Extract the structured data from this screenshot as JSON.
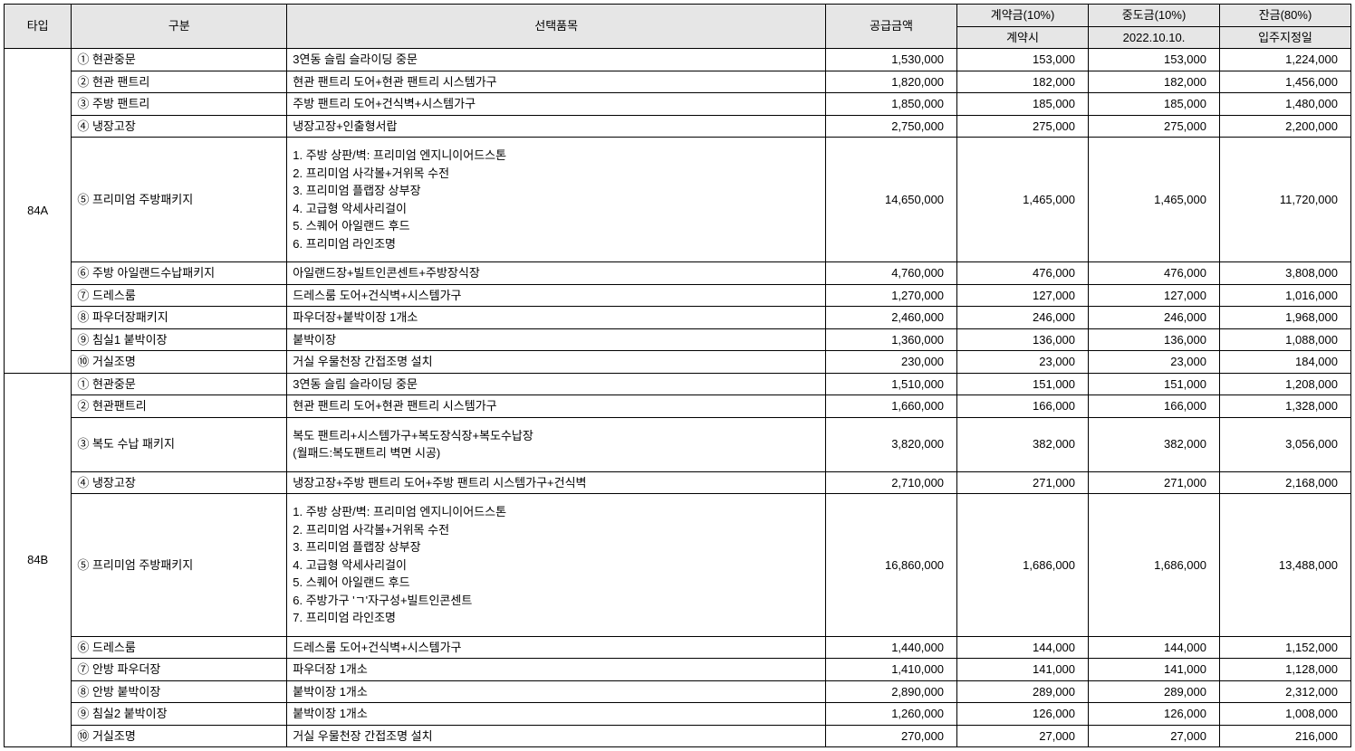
{
  "headers": {
    "type": "타입",
    "gubun": "구분",
    "item": "선택품목",
    "supply": "공급금액",
    "contract": "계약금(10%)",
    "mid": "중도금(10%)",
    "balance": "잔금(80%)",
    "contract_sub": "계약시",
    "mid_sub": "2022.10.10.",
    "balance_sub": "입주지정일"
  },
  "groups": [
    {
      "type": "84A",
      "rows": [
        {
          "gubun": "① 현관중문",
          "item": "3연동 슬림 슬라이딩 중문",
          "supply": "1,530,000",
          "c": "153,000",
          "m": "153,000",
          "b": "1,224,000"
        },
        {
          "gubun": "② 현관 팬트리",
          "item": "현관 팬트리 도어+현관 팬트리 시스템가구",
          "supply": "1,820,000",
          "c": "182,000",
          "m": "182,000",
          "b": "1,456,000"
        },
        {
          "gubun": "③ 주방 팬트리",
          "item": "주방 팬트리 도어+건식벽+시스템가구",
          "supply": "1,850,000",
          "c": "185,000",
          "m": "185,000",
          "b": "1,480,000"
        },
        {
          "gubun": "④ 냉장고장",
          "item": "냉장고장+인출형서랍",
          "supply": "2,750,000",
          "c": "275,000",
          "m": "275,000",
          "b": "2,200,000"
        },
        {
          "gubun": "⑤ 프리미엄 주방패키지",
          "item": "1. 주방 상판/벽: 프리미엄 엔지니이어드스톤\n2. 프리미엄 사각볼+거위목 수전\n3. 프리미엄 플랩장 상부장\n4. 고급형 악세사리걸이\n5. 스퀘어 아일랜드 후드\n6. 프리미엄 라인조명",
          "supply": "14,650,000",
          "c": "1,465,000",
          "m": "1,465,000",
          "b": "11,720,000",
          "multi": true
        },
        {
          "gubun": "⑥ 주방 아일랜드수납패키지",
          "item": "아일랜드장+빌트인콘센트+주방장식장",
          "supply": "4,760,000",
          "c": "476,000",
          "m": "476,000",
          "b": "3,808,000"
        },
        {
          "gubun": "⑦ 드레스룸",
          "item": "드레스룸 도어+건식벽+시스템가구",
          "supply": "1,270,000",
          "c": "127,000",
          "m": "127,000",
          "b": "1,016,000"
        },
        {
          "gubun": "⑧ 파우더장패키지",
          "item": "파우더장+붙박이장 1개소",
          "supply": "2,460,000",
          "c": "246,000",
          "m": "246,000",
          "b": "1,968,000"
        },
        {
          "gubun": "⑨ 침실1 붙박이장",
          "item": "붙박이장",
          "supply": "1,360,000",
          "c": "136,000",
          "m": "136,000",
          "b": "1,088,000"
        },
        {
          "gubun": "⑩ 거실조명",
          "item": "거실 우물천장 간접조명 설치",
          "supply": "230,000",
          "c": "23,000",
          "m": "23,000",
          "b": "184,000"
        }
      ]
    },
    {
      "type": "84B",
      "rows": [
        {
          "gubun": "① 현관중문",
          "item": "3연동 슬림 슬라이딩 중문",
          "supply": "1,510,000",
          "c": "151,000",
          "m": "151,000",
          "b": "1,208,000"
        },
        {
          "gubun": "② 현관팬트리",
          "item": "현관 팬트리 도어+현관 팬트리 시스템가구",
          "supply": "1,660,000",
          "c": "166,000",
          "m": "166,000",
          "b": "1,328,000"
        },
        {
          "gubun": "③ 복도 수납 패키지",
          "item": "복도 팬트리+시스템가구+복도장식장+복도수납장\n(월패드:복도팬트리 벽면 시공)",
          "supply": "3,820,000",
          "c": "382,000",
          "m": "382,000",
          "b": "3,056,000",
          "multi": true
        },
        {
          "gubun": "④ 냉장고장",
          "item": "냉장고장+주방 팬트리 도어+주방 팬트리 시스템가구+건식벽",
          "supply": "2,710,000",
          "c": "271,000",
          "m": "271,000",
          "b": "2,168,000"
        },
        {
          "gubun": "⑤ 프리미엄 주방패키지",
          "item": "1. 주방 상판/벽: 프리미엄 엔지니이어드스톤\n2. 프리미엄 사각볼+거위목 수전\n3. 프리미엄 플랩장 상부장\n4. 고급형 악세사리걸이\n5. 스퀘어 아일랜드 후드\n6. 주방가구 'ㄱ'자구성+빌트인콘센트\n7. 프리미엄 라인조명",
          "supply": "16,860,000",
          "c": "1,686,000",
          "m": "1,686,000",
          "b": "13,488,000",
          "multi": true
        },
        {
          "gubun": "⑥ 드레스룸",
          "item": "드레스룸 도어+건식벽+시스템가구",
          "supply": "1,440,000",
          "c": "144,000",
          "m": "144,000",
          "b": "1,152,000"
        },
        {
          "gubun": "⑦ 안방 파우더장",
          "item": "파우더장 1개소",
          "supply": "1,410,000",
          "c": "141,000",
          "m": "141,000",
          "b": "1,128,000"
        },
        {
          "gubun": "⑧ 안방 붙박이장",
          "item": "붙박이장 1개소",
          "supply": "2,890,000",
          "c": "289,000",
          "m": "289,000",
          "b": "2,312,000"
        },
        {
          "gubun": "⑨ 침실2 붙박이장",
          "item": "붙박이장 1개소",
          "supply": "1,260,000",
          "c": "126,000",
          "m": "126,000",
          "b": "1,008,000"
        },
        {
          "gubun": "⑩ 거실조명",
          "item": "거실 우물천장 간접조명 설치",
          "supply": "270,000",
          "c": "27,000",
          "m": "27,000",
          "b": "216,000"
        }
      ]
    }
  ]
}
